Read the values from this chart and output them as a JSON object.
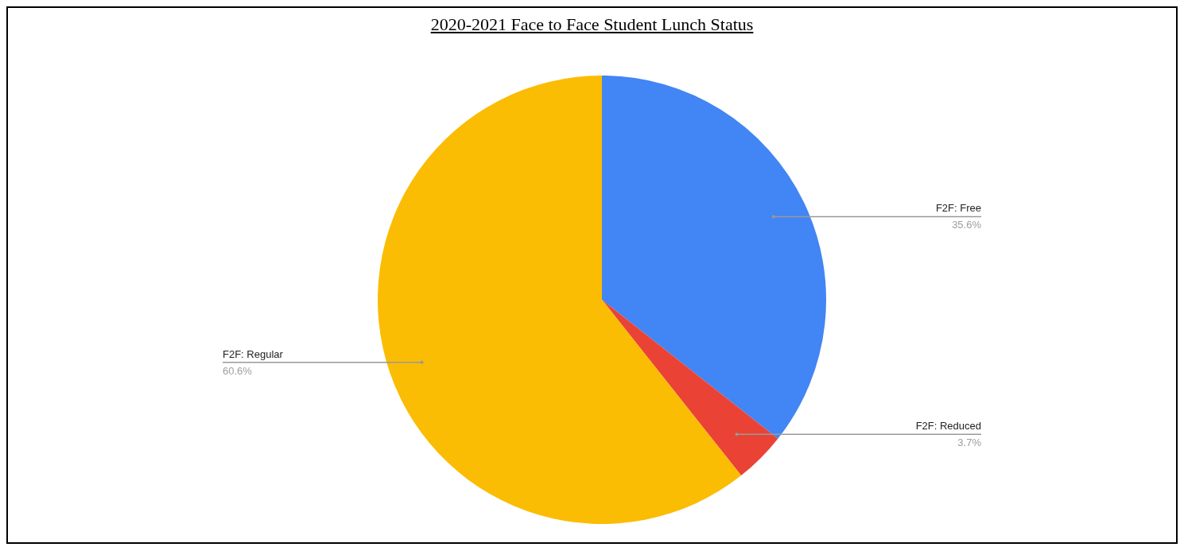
{
  "chart_data": {
    "type": "pie",
    "title": "2020-2021 Face to Face Student Lunch Status",
    "categories": [
      "F2F: Free",
      "F2F: Reduced",
      "F2F: Regular"
    ],
    "values": [
      35.6,
      3.7,
      60.6
    ],
    "colors": [
      "#4285f4",
      "#ea4335",
      "#fbbc04"
    ],
    "value_labels": [
      "35.6%",
      "3.7%",
      "60.6%"
    ]
  }
}
